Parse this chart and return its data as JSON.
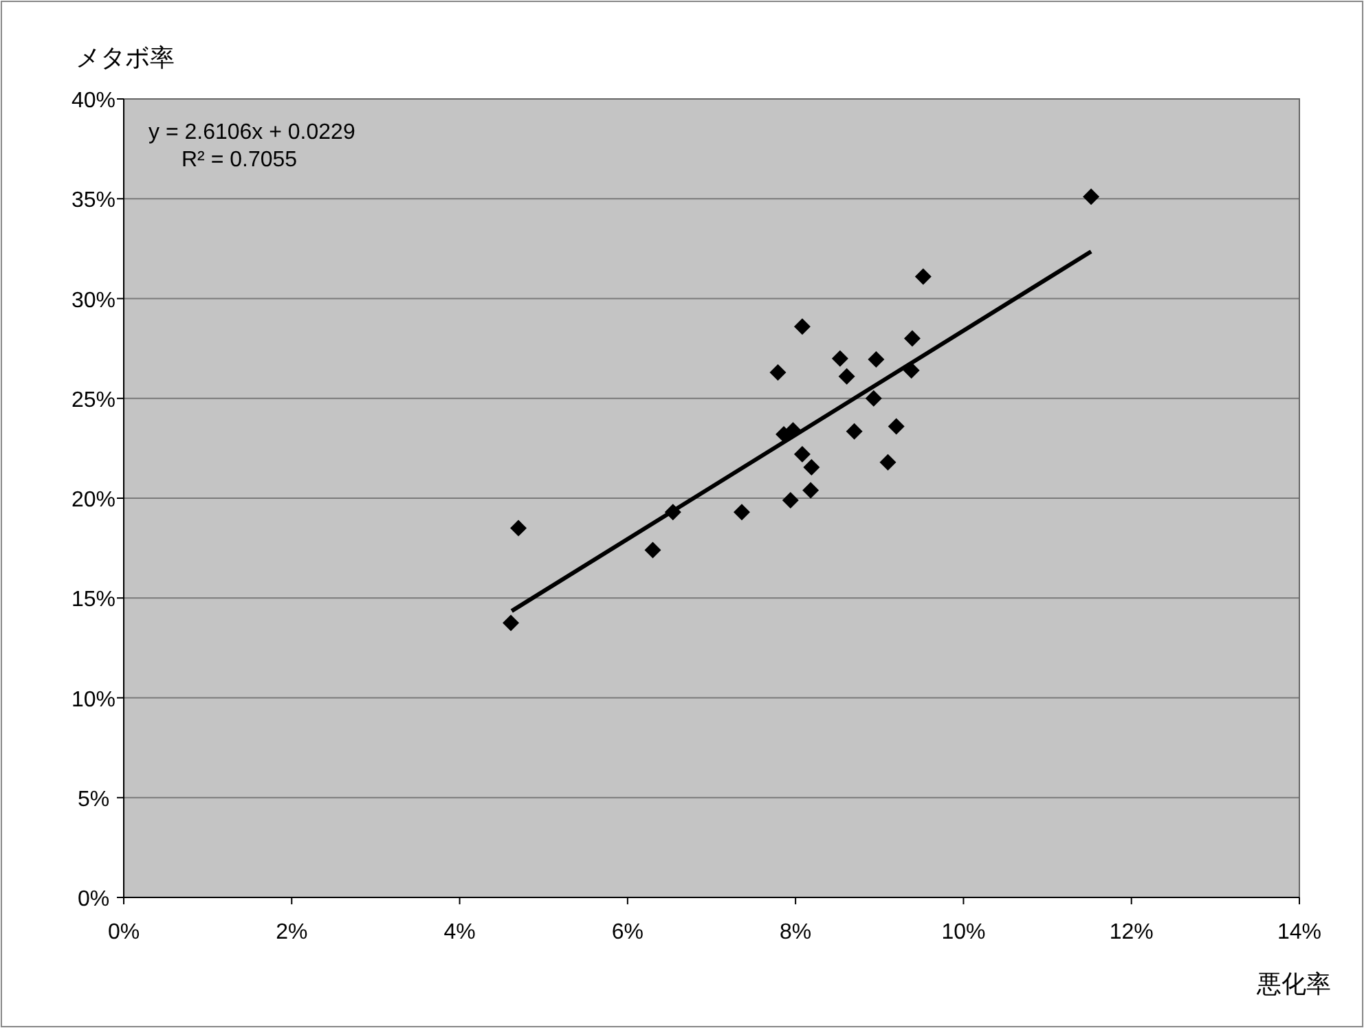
{
  "chart_data": {
    "type": "scatter",
    "xlabel": "悪化率",
    "ylabel": "メタボ率",
    "annotations": [
      "y = 2.6106x + 0.0229",
      "R² = 0.7055"
    ],
    "series": [
      {
        "color": "#000000",
        "marker": "diamond",
        "x": [
          4.61,
          4.7,
          6.3,
          6.54,
          7.36,
          7.94,
          8.18,
          8.19,
          8.08,
          9.1,
          7.86,
          7.97,
          8.7,
          9.2,
          8.93,
          7.79,
          8.61,
          9.38,
          8.53,
          8.96,
          9.39,
          8.08,
          9.52,
          11.52
        ],
        "values": [
          13.75,
          18.5,
          17.4,
          19.3,
          19.3,
          19.9,
          20.4,
          21.55,
          22.2,
          21.8,
          23.2,
          23.4,
          23.35,
          23.6,
          25.0,
          26.3,
          26.1,
          26.4,
          27.0,
          26.95,
          28.0,
          28.6,
          31.1,
          35.1
        ]
      },
      {
        "type": "line",
        "color": "#000000",
        "marker": "none",
        "line_style": "solid",
        "x": [
          4.62,
          11.52
        ],
        "values": [
          14.35,
          32.36
        ]
      }
    ],
    "xlim": [
      0,
      14
    ],
    "ylim": [
      0,
      40
    ],
    "xticks": [
      {
        "value": 0,
        "label": "0%"
      },
      {
        "value": 2,
        "label": "2%"
      },
      {
        "value": 4,
        "label": "4%"
      },
      {
        "value": 6,
        "label": "6%"
      },
      {
        "value": 8,
        "label": "8%"
      },
      {
        "value": 10,
        "label": "10%"
      },
      {
        "value": 12,
        "label": "12%"
      },
      {
        "value": 14,
        "label": "14%"
      }
    ],
    "yticks": [
      {
        "value": 0,
        "label": "0%"
      },
      {
        "value": 5,
        "label": "5%"
      },
      {
        "value": 10,
        "label": "10%"
      },
      {
        "value": 15,
        "label": "15%"
      },
      {
        "value": 20,
        "label": "20%"
      },
      {
        "value": 25,
        "label": "25%"
      },
      {
        "value": 30,
        "label": "30%"
      },
      {
        "value": 35,
        "label": "35%"
      },
      {
        "value": 40,
        "label": "40%"
      }
    ],
    "grid": "y"
  }
}
